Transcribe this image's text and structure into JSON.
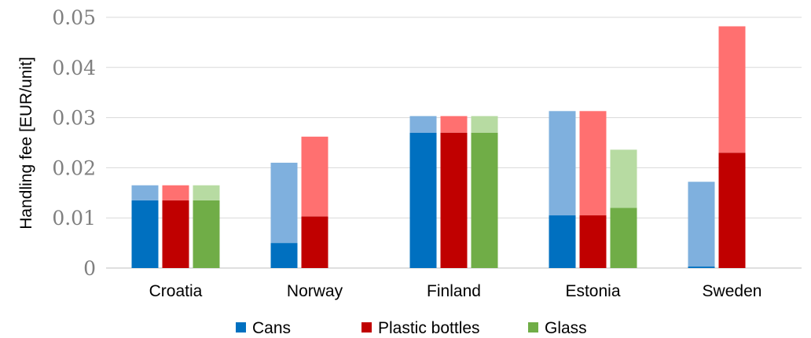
{
  "chart_data": {
    "type": "bar",
    "stacked_within_bar": true,
    "ylabel": "Handling fee [EUR/unit]",
    "ylim": [
      0,
      0.05
    ],
    "yticks": [
      "0",
      "0.01",
      "0.02",
      "0.03",
      "0.04",
      "0.05"
    ],
    "categories": [
      "Croatia",
      "Norway",
      "Finland",
      "Estonia",
      "Sweden"
    ],
    "grid": true,
    "legend_position": "bottom",
    "series": [
      {
        "name": "Cans",
        "color": "#0070c0",
        "range_color": "#7fb0de",
        "base": [
          0.0135,
          0.005,
          0.027,
          0.0105,
          0.0003
        ],
        "top": [
          0.0165,
          0.021,
          0.0303,
          0.0313,
          0.0172
        ]
      },
      {
        "name": "Plastic bottles",
        "color": "#c00000",
        "range_color": "#ff7070",
        "base": [
          0.0135,
          0.0103,
          0.027,
          0.0105,
          0.023
        ],
        "top": [
          0.0165,
          0.0262,
          0.0303,
          0.0313,
          0.0482
        ]
      },
      {
        "name": "Glass",
        "color": "#70ad47",
        "range_color": "#b7dba2",
        "base": [
          0.0135,
          null,
          0.027,
          0.012,
          null
        ],
        "top": [
          0.0165,
          null,
          0.0303,
          0.0236,
          null
        ]
      }
    ]
  }
}
